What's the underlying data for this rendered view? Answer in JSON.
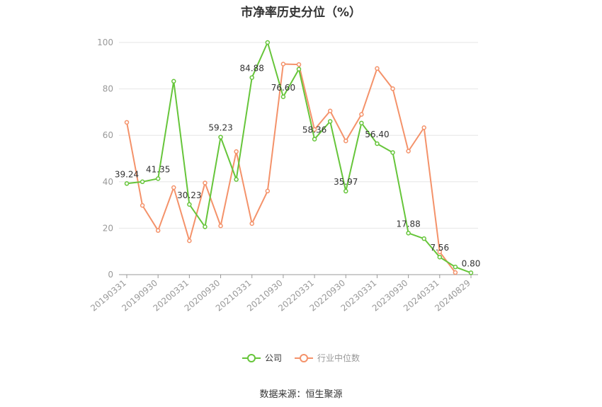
{
  "chart_data": {
    "type": "line",
    "title": "市净率历史分位（%）",
    "x": [
      "20190331",
      "20190630",
      "20190930",
      "20191231",
      "20200331",
      "20200630",
      "20200930",
      "20201231",
      "20210331",
      "20210630",
      "20210930",
      "20211231",
      "20220331",
      "20220630",
      "20220930",
      "20221231",
      "20230331",
      "20230630",
      "20230930",
      "20231231",
      "20240331",
      "20240630",
      "20240829"
    ],
    "x_tick_labels": [
      "20190331",
      "20190930",
      "20200331",
      "20200930",
      "20210331",
      "20210930",
      "20220331",
      "20220930",
      "20230331",
      "20230930",
      "20240331",
      "20240829"
    ],
    "ylim": [
      0,
      100
    ],
    "y_ticks": [
      0,
      20,
      40,
      60,
      80,
      100
    ],
    "grid": true,
    "legend_position": "bottom",
    "series": [
      {
        "name": "公司",
        "color": "#66c53a",
        "values": [
          39.24,
          40.0,
          41.35,
          83.3,
          30.23,
          20.6,
          59.23,
          41.0,
          84.88,
          100.0,
          76.6,
          88.5,
          58.36,
          66.0,
          35.97,
          65.3,
          56.4,
          52.6,
          17.88,
          15.5,
          7.56,
          3.3,
          0.8
        ],
        "labels": {
          "0": "39.24",
          "2": "41.35",
          "4": "30.23",
          "6": "59.23",
          "8": "84.88",
          "10": "76.60",
          "12": "58.36",
          "14": "35.97",
          "16": "56.40",
          "18": "17.88",
          "20": "7.56",
          "22": "0.80"
        }
      },
      {
        "name": "行业中位数",
        "color": "#f4926a",
        "values": [
          65.6,
          29.8,
          19.0,
          37.5,
          14.6,
          39.5,
          21.0,
          53.0,
          22.0,
          36.0,
          90.7,
          90.5,
          62.5,
          70.5,
          57.6,
          69.0,
          88.8,
          80.1,
          53.2,
          63.3,
          9.8,
          0.9,
          null
        ]
      }
    ]
  },
  "source": "数据来源：恒生聚源"
}
